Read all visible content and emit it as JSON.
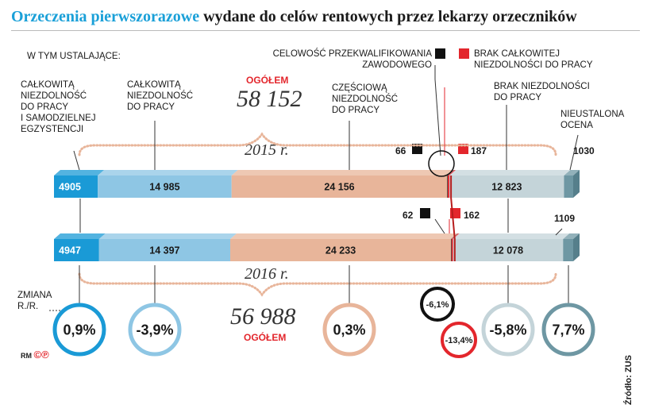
{
  "title_part1": "Orzeczenia pierwszorazowe",
  "title_part2": "wydane do celów rentowych przez lekarzy orzeczników",
  "w_tym": "W TYM USTALAJĄCE:",
  "labels": {
    "calk_samodz": [
      "CAŁKOWITĄ",
      "NIEZDOLNOŚĆ",
      "DO PRACY",
      "I SAMODZIELNEJ",
      "EGZYSTENCJI"
    ],
    "calk": [
      "CAŁKOWITĄ",
      "NIEZDOLNOŚĆ",
      "DO PRACY"
    ],
    "czesc": [
      "CZĘŚCIOWĄ",
      "NIEZDOLNOŚĆ",
      "DO PRACY"
    ],
    "celowosc": [
      "CELOWOŚĆ PRZEKWALIFIKOWANIA",
      "ZAWODOWEGO"
    ],
    "brak_calk": [
      "BRAK CAŁKOWITEJ",
      "NIEZDOLNOŚCI DO PRACY"
    ],
    "brak": [
      "BRAK NIEZDOLNOŚCI",
      "DO PRACY"
    ],
    "nieustalona": [
      "NIEUSTALONA",
      "OCENA"
    ]
  },
  "ogolem_label": "OGÓŁEM",
  "zmiana_label": [
    "ZMIANA",
    "R./R."
  ],
  "source": "Źródło: ZUS",
  "logo": "RM",
  "colors": {
    "samodz": "#1a9ad6",
    "calk": "#8ec6e4",
    "czesc": "#e8b59a",
    "celowosc": "#111111",
    "brak_calk": "#e3262c",
    "brak": "#c4d4d9",
    "nieustalona": "#6e97a3"
  },
  "chart_data": {
    "type": "bar",
    "orientation": "horizontal-stacked",
    "categories": [
      "2015 r.",
      "2016 r."
    ],
    "totals": {
      "2015 r.": "58 152",
      "2016 r.": "56 988"
    },
    "series": [
      {
        "key": "samodz",
        "values": [
          4905,
          4947
        ],
        "labels": [
          "4905",
          "4947"
        ],
        "change": "0,9%"
      },
      {
        "key": "calk",
        "values": [
          14985,
          14397
        ],
        "labels": [
          "14 985",
          "14 397"
        ],
        "change": "-3,9%"
      },
      {
        "key": "czesc",
        "values": [
          24156,
          24233
        ],
        "labels": [
          "24 156",
          "24 233"
        ],
        "change": "0,3%"
      },
      {
        "key": "celowosc",
        "values": [
          66,
          62
        ],
        "labels": [
          "66",
          "62"
        ],
        "change": "-6,1%"
      },
      {
        "key": "brak_calk",
        "values": [
          187,
          162
        ],
        "labels": [
          "187",
          "162"
        ],
        "change": "-13,4%"
      },
      {
        "key": "brak",
        "values": [
          12823,
          12078
        ],
        "labels": [
          "12 823",
          "12 078"
        ],
        "change": "-5,8%"
      },
      {
        "key": "nieustalona",
        "values": [
          1030,
          1109
        ],
        "labels": [
          "1030",
          "1109"
        ],
        "change": "7,7%"
      }
    ]
  }
}
